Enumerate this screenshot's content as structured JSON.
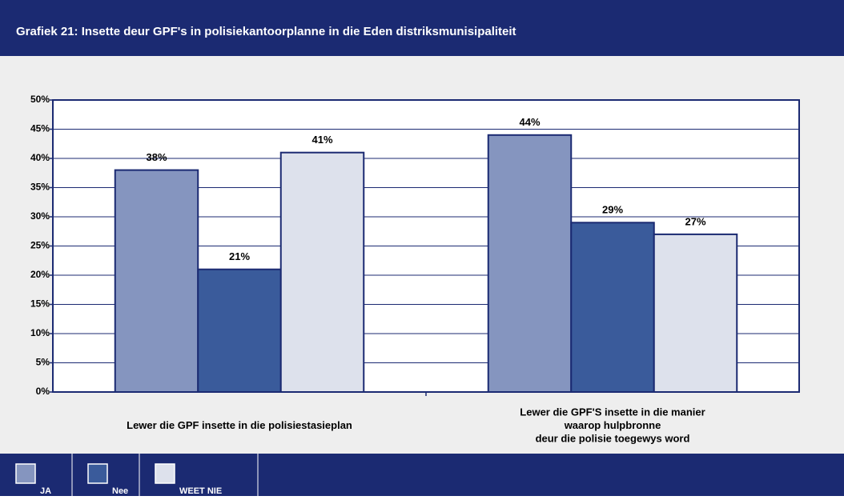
{
  "chart_data": {
    "type": "bar",
    "title": "Grafiek 21: Insette deur GPF's in polisiekantoorplanne in die Eden distriksmunisipaliteit",
    "categories": [
      "Lewer die GPF insette in die polisiestasieplan",
      "Lewer die GPF'S insette in die manier\nwaarop hulpbronne\ndeur die polisie toegewys word"
    ],
    "series": [
      {
        "name": "JA",
        "color": "#8595bf",
        "values": [
          38,
          44
        ],
        "value_labels": [
          "38%",
          "44%"
        ]
      },
      {
        "name": "Nee",
        "color": "#3a5b9b",
        "values": [
          21,
          29
        ],
        "value_labels": [
          "21%",
          "29%"
        ]
      },
      {
        "name": "WEET NIE",
        "color": "#dde1ec",
        "values": [
          41,
          27
        ],
        "value_labels": [
          "41%",
          "27%"
        ]
      }
    ],
    "ylim": [
      0,
      50
    ],
    "yticks": [
      {
        "value": 0,
        "label": "0%"
      },
      {
        "value": 5,
        "label": "5%"
      },
      {
        "value": 10,
        "label": "10%"
      },
      {
        "value": 15,
        "label": "15%"
      },
      {
        "value": 20,
        "label": "20%"
      },
      {
        "value": 25,
        "label": "25%"
      },
      {
        "value": 30,
        "label": "30%"
      },
      {
        "value": 35,
        "label": "35%"
      },
      {
        "value": 40,
        "label": "40%"
      },
      {
        "value": 45,
        "label": "45%"
      },
      {
        "value": 50,
        "label": "50%"
      }
    ],
    "grid": true
  }
}
